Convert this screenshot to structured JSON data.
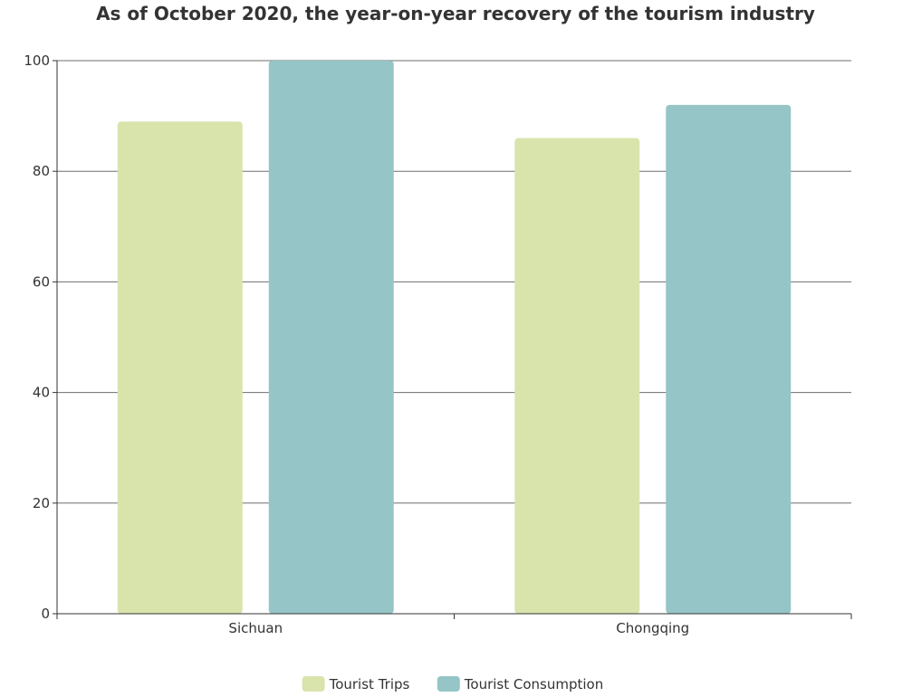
{
  "chart_data": {
    "type": "bar",
    "title": "As of October 2020, the year-on-year recovery of the tourism industry",
    "categories": [
      "Sichuan",
      "Chongqing"
    ],
    "series": [
      {
        "name": "Tourist Trips",
        "values": [
          89,
          86
        ],
        "color": "#d9e4ad"
      },
      {
        "name": "Tourist Consumption",
        "values": [
          100,
          92
        ],
        "color": "#95c5c6"
      }
    ],
    "xlabel": "",
    "ylabel": "",
    "ylim": [
      0,
      100
    ],
    "yticks": [
      0,
      20,
      40,
      60,
      80,
      100
    ],
    "grid": true,
    "legend_position": "bottom-center"
  }
}
